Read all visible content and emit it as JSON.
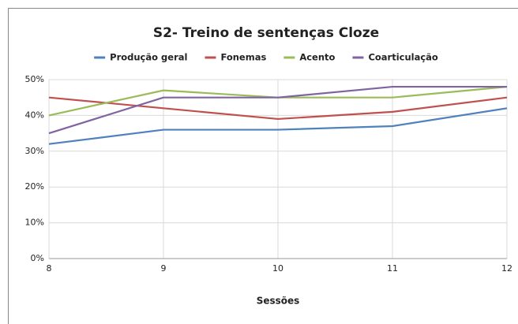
{
  "chart_data": {
    "type": "line",
    "title": "S2- Treino de sentenças Cloze",
    "x_label": "Sessões",
    "x": [
      8,
      9,
      10,
      11,
      12
    ],
    "xlim": [
      8,
      12
    ],
    "xticks": [
      8,
      9,
      10,
      11,
      12
    ],
    "ylim": [
      0,
      50
    ],
    "yticks": [
      {
        "value": 0,
        "label": "0%"
      },
      {
        "value": 10,
        "label": "10%"
      },
      {
        "value": 20,
        "label": "20%"
      },
      {
        "value": 30,
        "label": "30%"
      },
      {
        "value": 40,
        "label": "40%"
      },
      {
        "value": 50,
        "label": "50%"
      }
    ],
    "grid": true,
    "legend": "top",
    "series": [
      {
        "name": "Produção geral",
        "color": "#4f81bd",
        "values": [
          32,
          36,
          36,
          37,
          42
        ]
      },
      {
        "name": "Fonemas",
        "color": "#c0504d",
        "values": [
          45,
          42,
          39,
          41,
          45
        ]
      },
      {
        "name": "Acento",
        "color": "#9bbb59",
        "values": [
          40,
          47,
          45,
          45,
          48
        ]
      },
      {
        "name": "Coarticulação",
        "color": "#8064a2",
        "values": [
          35,
          45,
          45,
          48,
          48
        ]
      }
    ]
  }
}
